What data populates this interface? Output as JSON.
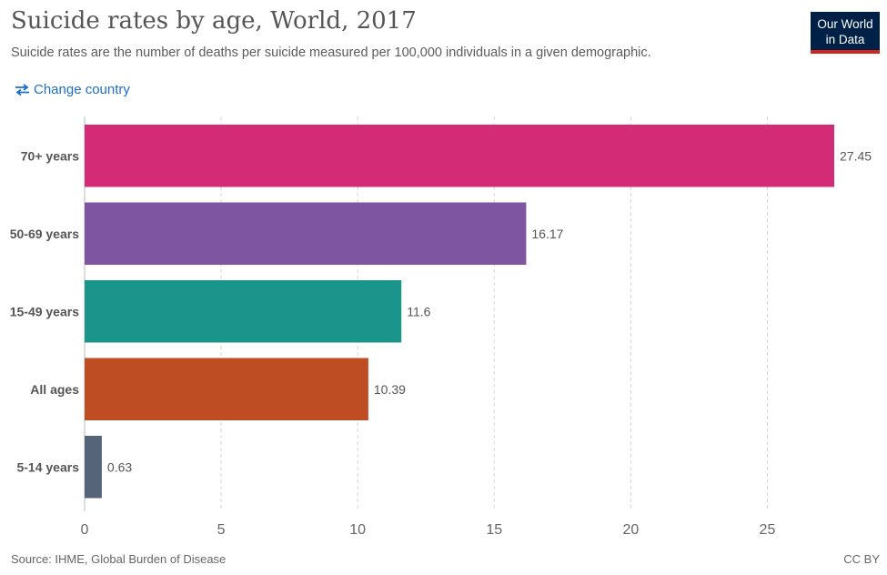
{
  "header": {
    "title": "Suicide rates by age, World, 2017",
    "subtitle": "Suicide rates are the number of deaths per suicide measured per 100,000 individuals in a given demographic.",
    "logo_line1": "Our World",
    "logo_line2": "in Data"
  },
  "controls": {
    "change_country_label": "Change country"
  },
  "footer": {
    "source": "Source: IHME, Global Burden of Disease",
    "license": "CC BY"
  },
  "chart_data": {
    "type": "bar",
    "orientation": "horizontal",
    "title": "Suicide rates by age, World, 2017",
    "xlabel": "",
    "ylabel": "",
    "xlim": [
      0,
      27.45
    ],
    "xticks": [
      0,
      5,
      10,
      15,
      20,
      25
    ],
    "grid": true,
    "categories": [
      "70+ years",
      "50-69 years",
      "15-49 years",
      "All ages",
      "5-14 years"
    ],
    "values": [
      27.45,
      16.17,
      11.6,
      10.39,
      0.63
    ],
    "value_labels": [
      "27.45",
      "16.17",
      "11.6",
      "10.39",
      "0.63"
    ],
    "colors": [
      "#d42b77",
      "#7e55a0",
      "#1b958c",
      "#bf4d24",
      "#556479"
    ]
  }
}
